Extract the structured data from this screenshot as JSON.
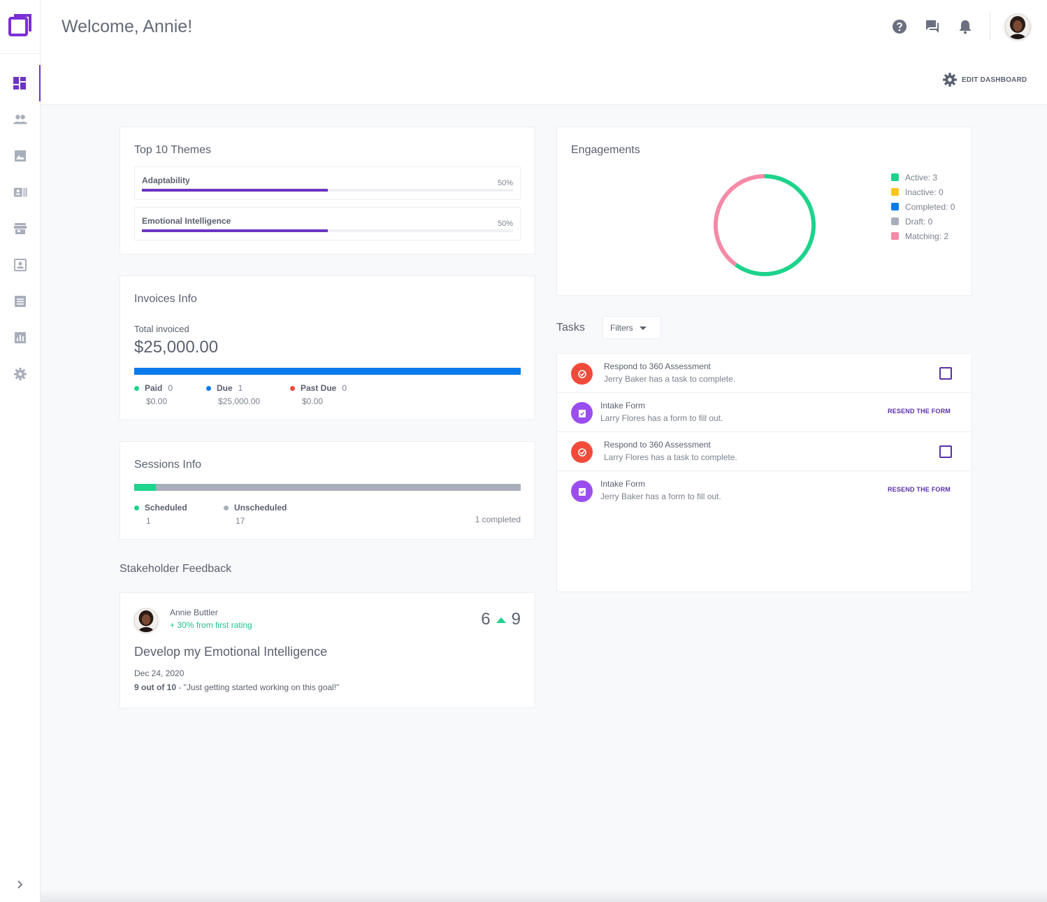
{
  "header": {
    "welcome": "Welcome, Annie!",
    "edit_dashboard": "EDIT DASHBOARD"
  },
  "nav": {
    "items": [
      "dashboard",
      "people",
      "gallery",
      "contacts",
      "store",
      "profile",
      "notes",
      "reports",
      "settings"
    ]
  },
  "themes": {
    "title": "Top 10 Themes",
    "items": [
      {
        "name": "Adaptability",
        "percent_label": "50%",
        "percent": 50
      },
      {
        "name": "Emotional Intelligence",
        "percent_label": "50%",
        "percent": 50
      }
    ]
  },
  "invoices": {
    "title": "Invoices Info",
    "total_label": "Total invoiced",
    "total": "$25,000.00",
    "legend": [
      {
        "name": "Paid",
        "count": "0",
        "amount": "$0.00",
        "color": "#1ed38c"
      },
      {
        "name": "Due",
        "count": "1",
        "amount": "$25,000.00",
        "color": "#0b7aeb"
      },
      {
        "name": "Past Due",
        "count": "0",
        "amount": "$0.00",
        "color": "#f04b3a"
      }
    ]
  },
  "sessions": {
    "title": "Sessions Info",
    "scheduled_label": "Scheduled",
    "scheduled": "1",
    "unscheduled_label": "Unscheduled",
    "unscheduled": "17",
    "completed": "1 completed",
    "scheduled_fraction": 0.056
  },
  "feedback": {
    "section_title": "Stakeholder Feedback",
    "name": "Annie Buttler",
    "change": "+ 30%  from first rating",
    "score_from": "6",
    "score_to": "9",
    "goal": "Develop my Emotional Intelligence",
    "date": "Dec 24, 2020",
    "rating_bold": "9 out of 10",
    "rating_rest": " - \"Just getting started working on this goal!\""
  },
  "engagements": {
    "title": "Engagements",
    "legend": [
      {
        "label": "Active: 3",
        "color": "#1ed38c"
      },
      {
        "label": "Inactive: 0",
        "color": "#f7c61a"
      },
      {
        "label": "Completed: 0",
        "color": "#0b7aeb"
      },
      {
        "label": "Draft: 0",
        "color": "#a9aebb"
      },
      {
        "label": "Matching: 2",
        "color": "#f48aa6"
      }
    ],
    "chart_data": {
      "type": "pie",
      "categories": [
        "Active",
        "Inactive",
        "Completed",
        "Draft",
        "Matching"
      ],
      "values": [
        3,
        0,
        0,
        0,
        2
      ]
    }
  },
  "tasks": {
    "title": "Tasks",
    "filters_label": "Filters",
    "items": [
      {
        "title": "Respond to 360 Assessment",
        "subtitle": "Jerry Baker has a task to complete.",
        "type": "task"
      },
      {
        "title": "Intake Form",
        "subtitle": "Larry Flores has a form to fill out.",
        "type": "form",
        "action": "RESEND THE FORM"
      },
      {
        "title": "Respond to 360 Assessment",
        "subtitle": "Larry Flores has a task to complete.",
        "type": "task"
      },
      {
        "title": "Intake Form",
        "subtitle": "Jerry Baker has a form to fill out.",
        "type": "form",
        "action": "RESEND THE FORM"
      }
    ]
  },
  "colors": {
    "accent": "#6c35c4",
    "task_red": "#f04b3a",
    "form_purple": "#9b4ef0"
  }
}
